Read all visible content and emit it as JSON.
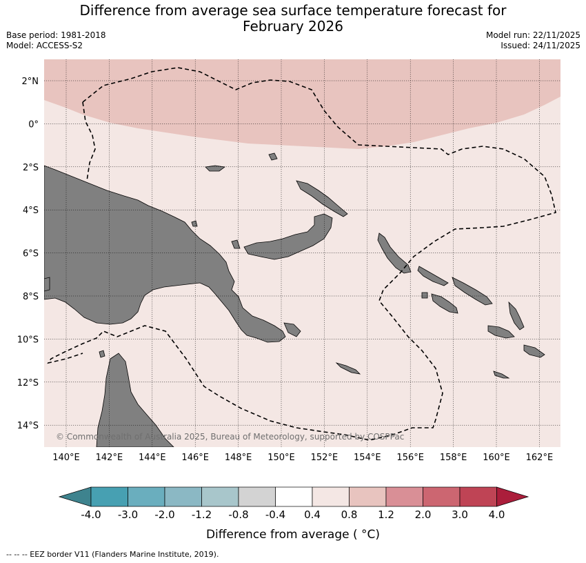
{
  "title_line1": "Difference from average sea surface temperature forecast for",
  "title_line2": "February 2026",
  "base_period": "Base period: 1981-2018",
  "model": "Model: ACCESS-S2",
  "model_run": "Model run: 22/11/2025",
  "issued": "Issued: 24/11/2025",
  "copyright": "© Commonwealth of Australia 2025, Bureau of Meteorology, supported by COSPPac",
  "footnote": "--  --  -- EEZ border V11 (Flanders Marine Institute, 2019).",
  "map": {
    "lat_ticks": [
      "2°N",
      "0°",
      "2°S",
      "4°S",
      "6°S",
      "8°S",
      "10°S",
      "12°S",
      "14°S"
    ],
    "lon_ticks": [
      "140°E",
      "142°E",
      "144°E",
      "146°E",
      "148°E",
      "150°E",
      "152°E",
      "154°E",
      "156°E",
      "158°E",
      "160°E",
      "162°E"
    ],
    "colors": {
      "land": "#808080",
      "anomaly_0_4_0_8": "#f4e7e4",
      "anomaly_0_8_1_2": "#e8c4bf"
    }
  },
  "colorbar": {
    "label": "Difference from average ( °C)",
    "ticks": [
      "-4.0",
      "-3.0",
      "-2.0",
      "-1.2",
      "-0.8",
      "-0.4",
      "0.4",
      "0.8",
      "1.2",
      "2.0",
      "3.0",
      "4.0"
    ],
    "colors": [
      "#3e838e",
      "#47a0b2",
      "#6aaebe",
      "#8bb8c4",
      "#a8c6cb",
      "#d3d3d3",
      "#ffffff",
      "#f4e7e4",
      "#e8c4bf",
      "#d98f96",
      "#cc6671",
      "#bf4455",
      "#ab1e3b"
    ]
  }
}
